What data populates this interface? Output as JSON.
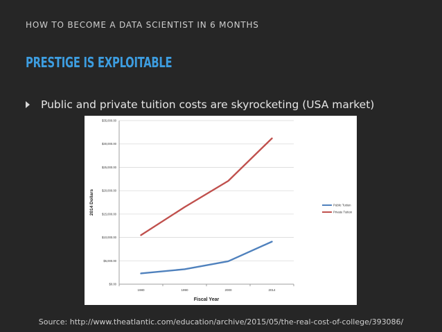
{
  "header": {
    "deck_title": "HOW TO BECOME A DATA SCIENTIST IN 6 MONTHS"
  },
  "slide": {
    "title": "PRESTIGE IS EXPLOITABLE",
    "bullet": "Public and private tuition costs are skyrocketing (USA market)",
    "source": "Source: http://www.theatlantic.com/education/archive/2015/05/the-real-cost-of-college/393086/"
  },
  "chart_data": {
    "type": "line",
    "xlabel": "Fiscal Year",
    "ylabel": "2014 Dollars",
    "categories": [
      "1980",
      "1990",
      "2000",
      "2014"
    ],
    "ylim": [
      0,
      35000
    ],
    "yticks": [
      0,
      5000,
      10000,
      15000,
      20000,
      25000,
      30000,
      35000
    ],
    "ytick_labels": [
      "$0.00",
      "$5,000.00",
      "$10,000.00",
      "$15,000.00",
      "$20,000.00",
      "$25,000.00",
      "$30,000.00",
      "$35,000.00"
    ],
    "grid": true,
    "legend": "right",
    "series": [
      {
        "name": "Public Tuition",
        "color": "#4f81bd",
        "values": [
          2300,
          3200,
          4900,
          9100
        ]
      },
      {
        "name": "Private Tuition",
        "color": "#c0504d",
        "values": [
          10500,
          16500,
          22100,
          31200
        ]
      }
    ]
  }
}
